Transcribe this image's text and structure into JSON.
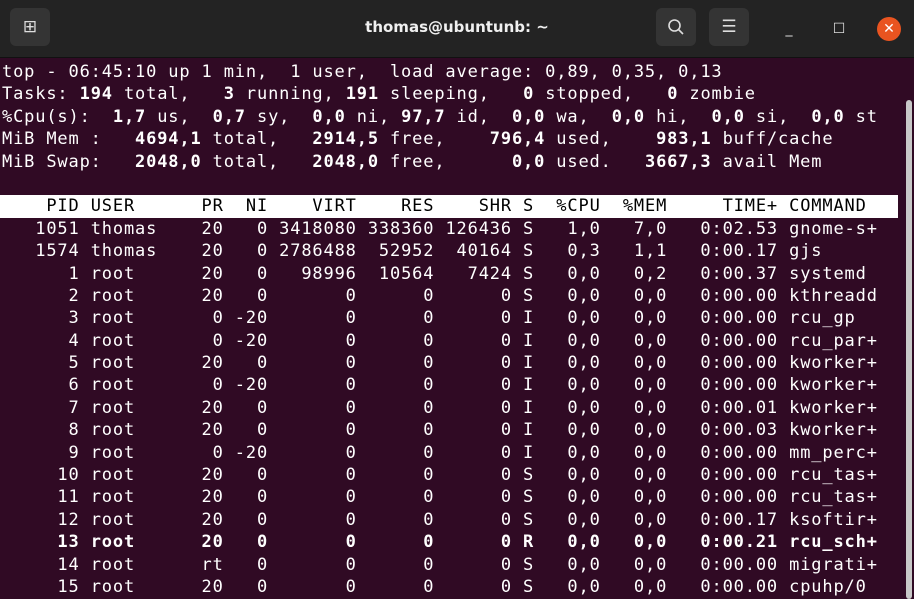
{
  "window": {
    "title": "thomas@ubuntunb: ~",
    "icons": {
      "new_tab": "new-tab-icon",
      "search": "search-icon",
      "menu": "hamburger-menu-icon",
      "minimize": "minimize-icon",
      "maximize": "maximize-icon",
      "close": "close-icon"
    },
    "colors": {
      "background": "#300a24",
      "titlebar": "#232323",
      "close": "#e95420"
    }
  },
  "summary": [
    [
      {
        "t": "top - 06:45:10 up 1 min,  1 user,  load average: 0,89, 0,35, 0,13",
        "b": false
      }
    ],
    [
      {
        "t": "Tasks: ",
        "b": false
      },
      {
        "t": "194",
        "b": true
      },
      {
        "t": " total,   ",
        "b": false
      },
      {
        "t": "3",
        "b": true
      },
      {
        "t": " running, ",
        "b": false
      },
      {
        "t": "191",
        "b": true
      },
      {
        "t": " sleeping,   ",
        "b": false
      },
      {
        "t": "0",
        "b": true
      },
      {
        "t": " stopped,   ",
        "b": false
      },
      {
        "t": "0",
        "b": true
      },
      {
        "t": " zombie",
        "b": false
      }
    ],
    [
      {
        "t": "%Cpu(s):  ",
        "b": false
      },
      {
        "t": "1,7",
        "b": true
      },
      {
        "t": " us,  ",
        "b": false
      },
      {
        "t": "0,7",
        "b": true
      },
      {
        "t": " sy,  ",
        "b": false
      },
      {
        "t": "0,0",
        "b": true
      },
      {
        "t": " ni, ",
        "b": false
      },
      {
        "t": "97,7",
        "b": true
      },
      {
        "t": " id,  ",
        "b": false
      },
      {
        "t": "0,0",
        "b": true
      },
      {
        "t": " wa,  ",
        "b": false
      },
      {
        "t": "0,0",
        "b": true
      },
      {
        "t": " hi,  ",
        "b": false
      },
      {
        "t": "0,0",
        "b": true
      },
      {
        "t": " si,  ",
        "b": false
      },
      {
        "t": "0,0",
        "b": true
      },
      {
        "t": " st",
        "b": false
      }
    ],
    [
      {
        "t": "MiB Mem :   ",
        "b": false
      },
      {
        "t": "4694,1",
        "b": true
      },
      {
        "t": " total,   ",
        "b": false
      },
      {
        "t": "2914,5",
        "b": true
      },
      {
        "t": " free,    ",
        "b": false
      },
      {
        "t": "796,4",
        "b": true
      },
      {
        "t": " used,    ",
        "b": false
      },
      {
        "t": "983,1",
        "b": true
      },
      {
        "t": " buff/cache",
        "b": false
      }
    ],
    [
      {
        "t": "MiB Swap:   ",
        "b": false
      },
      {
        "t": "2048,0",
        "b": true
      },
      {
        "t": " total,   ",
        "b": false
      },
      {
        "t": "2048,0",
        "b": true
      },
      {
        "t": " free,      ",
        "b": false
      },
      {
        "t": "0,0",
        "b": true
      },
      {
        "t": " used.   ",
        "b": false
      },
      {
        "t": "3667,3",
        "b": true
      },
      {
        "t": " avail Mem",
        "b": false
      }
    ]
  ],
  "table": {
    "columns": [
      "PID",
      "USER",
      "PR",
      "NI",
      "VIRT",
      "RES",
      "SHR",
      "S",
      "%CPU",
      "%MEM",
      "TIME+",
      "COMMAND"
    ],
    "rows": [
      {
        "cells": [
          "1051",
          "thomas",
          "20",
          "0",
          "3418080",
          "338360",
          "126436",
          "S",
          "1,0",
          "7,0",
          "0:02.53",
          "gnome-s+"
        ],
        "bold": false
      },
      {
        "cells": [
          "1574",
          "thomas",
          "20",
          "0",
          "2786488",
          "52952",
          "40164",
          "S",
          "0,3",
          "1,1",
          "0:00.17",
          "gjs"
        ],
        "bold": false
      },
      {
        "cells": [
          "1",
          "root",
          "20",
          "0",
          "98996",
          "10564",
          "7424",
          "S",
          "0,0",
          "0,2",
          "0:00.37",
          "systemd"
        ],
        "bold": false
      },
      {
        "cells": [
          "2",
          "root",
          "20",
          "0",
          "0",
          "0",
          "0",
          "S",
          "0,0",
          "0,0",
          "0:00.00",
          "kthreadd"
        ],
        "bold": false
      },
      {
        "cells": [
          "3",
          "root",
          "0",
          "-20",
          "0",
          "0",
          "0",
          "I",
          "0,0",
          "0,0",
          "0:00.00",
          "rcu_gp"
        ],
        "bold": false
      },
      {
        "cells": [
          "4",
          "root",
          "0",
          "-20",
          "0",
          "0",
          "0",
          "I",
          "0,0",
          "0,0",
          "0:00.00",
          "rcu_par+"
        ],
        "bold": false
      },
      {
        "cells": [
          "5",
          "root",
          "20",
          "0",
          "0",
          "0",
          "0",
          "I",
          "0,0",
          "0,0",
          "0:00.00",
          "kworker+"
        ],
        "bold": false
      },
      {
        "cells": [
          "6",
          "root",
          "0",
          "-20",
          "0",
          "0",
          "0",
          "I",
          "0,0",
          "0,0",
          "0:00.00",
          "kworker+"
        ],
        "bold": false
      },
      {
        "cells": [
          "7",
          "root",
          "20",
          "0",
          "0",
          "0",
          "0",
          "I",
          "0,0",
          "0,0",
          "0:00.01",
          "kworker+"
        ],
        "bold": false
      },
      {
        "cells": [
          "8",
          "root",
          "20",
          "0",
          "0",
          "0",
          "0",
          "I",
          "0,0",
          "0,0",
          "0:00.03",
          "kworker+"
        ],
        "bold": false
      },
      {
        "cells": [
          "9",
          "root",
          "0",
          "-20",
          "0",
          "0",
          "0",
          "I",
          "0,0",
          "0,0",
          "0:00.00",
          "mm_perc+"
        ],
        "bold": false
      },
      {
        "cells": [
          "10",
          "root",
          "20",
          "0",
          "0",
          "0",
          "0",
          "S",
          "0,0",
          "0,0",
          "0:00.00",
          "rcu_tas+"
        ],
        "bold": false
      },
      {
        "cells": [
          "11",
          "root",
          "20",
          "0",
          "0",
          "0",
          "0",
          "S",
          "0,0",
          "0,0",
          "0:00.00",
          "rcu_tas+"
        ],
        "bold": false
      },
      {
        "cells": [
          "12",
          "root",
          "20",
          "0",
          "0",
          "0",
          "0",
          "S",
          "0,0",
          "0,0",
          "0:00.17",
          "ksoftir+"
        ],
        "bold": false
      },
      {
        "cells": [
          "13",
          "root",
          "20",
          "0",
          "0",
          "0",
          "0",
          "R",
          "0,0",
          "0,0",
          "0:00.21",
          "rcu_sch+"
        ],
        "bold": true
      },
      {
        "cells": [
          "14",
          "root",
          "rt",
          "0",
          "0",
          "0",
          "0",
          "S",
          "0,0",
          "0,0",
          "0:00.00",
          "migrati+"
        ],
        "bold": false
      },
      {
        "cells": [
          "15",
          "root",
          "20",
          "0",
          "0",
          "0",
          "0",
          "S",
          "0,0",
          "0,0",
          "0:00.00",
          "cpuhp/0"
        ],
        "bold": false
      }
    ]
  }
}
